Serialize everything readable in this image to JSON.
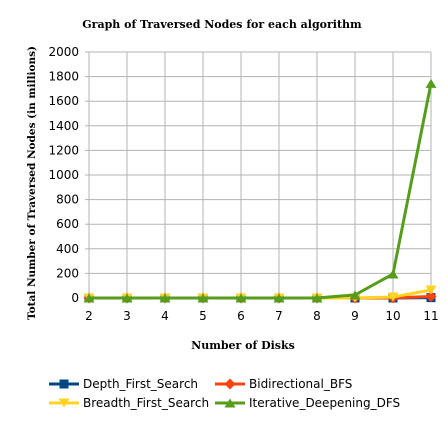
{
  "chart_data": {
    "type": "line",
    "title": "Graph of Traversed Nodes for each algorithm",
    "xlabel": "Number of Disks",
    "ylabel": "Total Number of Traversed Nodes (in millions)",
    "x": [
      2,
      3,
      4,
      5,
      6,
      7,
      8,
      9,
      10,
      11
    ],
    "ylim": [
      0,
      2000
    ],
    "yticks": [
      0,
      200,
      400,
      600,
      800,
      1000,
      1200,
      1400,
      1600,
      1800,
      2000
    ],
    "grid": true,
    "legend_position": "bottom",
    "series": [
      {
        "name": "Depth_First_Search",
        "color": "#004586",
        "marker": "square",
        "values": [
          0,
          0,
          0,
          0,
          0,
          0,
          0,
          0,
          0,
          3
        ]
      },
      {
        "name": "Bidirectional_BFS",
        "color": "#ff420e",
        "marker": "diamond",
        "values": [
          0,
          0,
          0,
          0,
          0,
          0,
          0,
          0,
          1,
          12
        ]
      },
      {
        "name": "Breadth_First_Search",
        "color": "#ffd320",
        "marker": "triangle-down",
        "values": [
          0,
          0,
          0,
          0,
          0,
          0,
          0,
          0,
          8,
          65
        ]
      },
      {
        "name": "Iterative_Deepening_DFS",
        "color": "#579d1c",
        "marker": "triangle-up",
        "values": [
          0,
          0,
          0,
          0,
          0,
          0,
          0,
          25,
          195,
          1745
        ]
      }
    ]
  }
}
